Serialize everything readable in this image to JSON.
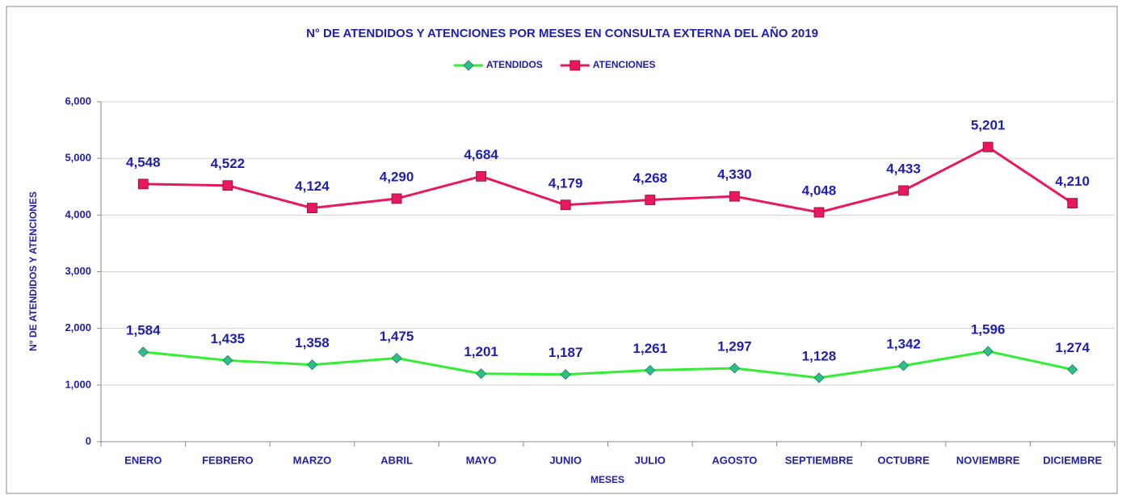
{
  "chart_data": {
    "type": "line",
    "title": "N° DE ATENDIDOS Y ATENCIONES POR MESES EN CONSULTA EXTERNA DEL AÑO 2019",
    "x_label": "MESES",
    "y_label": "N° DE ATENDIDOS Y ATENCIONES",
    "categories": [
      "ENERO",
      "FEBRERO",
      "MARZO",
      "ABRIL",
      "MAYO",
      "JUNIO",
      "JULIO",
      "AGOSTO",
      "SEPTIEMBRE",
      "OCTUBRE",
      "NOVIEMBRE",
      "DICIEMBRE"
    ],
    "series": [
      {
        "name": "ATENDIDOS",
        "color": "#33ee33",
        "marker": "diamond",
        "marker_color": "#2dbf8a",
        "values": [
          1584,
          1435,
          1358,
          1475,
          1201,
          1187,
          1261,
          1297,
          1128,
          1342,
          1596,
          1274
        ],
        "value_labels": [
          "1,584",
          "1,435",
          "1,358",
          "1,475",
          "1,201",
          "1,187",
          "1,261",
          "1,297",
          "1,128",
          "1,342",
          "1,596",
          "1,274"
        ]
      },
      {
        "name": "ATENCIONES",
        "color": "#e8185e",
        "marker": "square",
        "marker_color": "#e8185e",
        "values": [
          4548,
          4522,
          4124,
          4290,
          4684,
          4179,
          4268,
          4330,
          4048,
          4433,
          5201,
          4210
        ],
        "value_labels": [
          "4,548",
          "4,522",
          "4,124",
          "4,290",
          "4,684",
          "4,179",
          "4,268",
          "4,330",
          "4,048",
          "4,433",
          "5,201",
          "4,210"
        ]
      }
    ],
    "ylim": [
      0,
      6000
    ],
    "yticks": [
      0,
      {
        "value": 1000,
        "label": "1,000"
      },
      {
        "value": 2000,
        "label": "2,000"
      },
      {
        "value": 3000,
        "label": "3,000"
      },
      {
        "value": 4000,
        "label": "4,000"
      },
      {
        "value": 5000,
        "label": "5,000"
      },
      {
        "value": 6000,
        "label": "6,000"
      }
    ],
    "grid": true,
    "legend": "top"
  }
}
